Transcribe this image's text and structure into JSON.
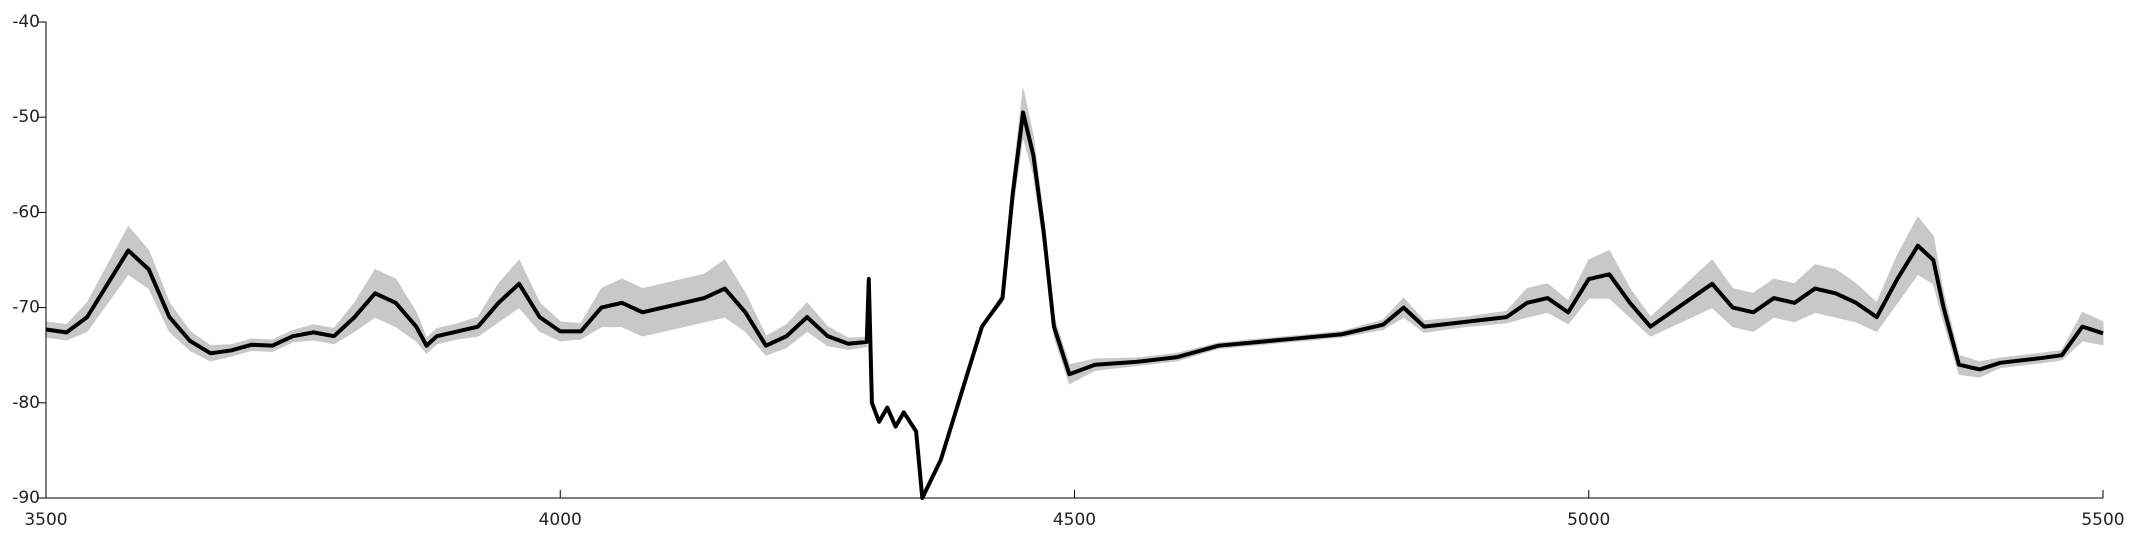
{
  "chart_data": {
    "type": "line",
    "x": [
      3500,
      3520,
      3540,
      3560,
      3580,
      3600,
      3620,
      3640,
      3660,
      3680,
      3700,
      3720,
      3740,
      3760,
      3780,
      3800,
      3820,
      3840,
      3860,
      3870,
      3880,
      3900,
      3920,
      3940,
      3960,
      3980,
      4000,
      4020,
      4040,
      4060,
      4080,
      4100,
      4120,
      4140,
      4160,
      4180,
      4200,
      4220,
      4240,
      4260,
      4280,
      4298,
      4300,
      4303,
      4310,
      4318,
      4326,
      4334,
      4340,
      4346,
      4352,
      4370,
      4390,
      4410,
      4430,
      4440,
      4450,
      4460,
      4470,
      4480,
      4495,
      4520,
      4560,
      4600,
      4640,
      4680,
      4720,
      4760,
      4800,
      4820,
      4840,
      4880,
      4920,
      4940,
      4960,
      4980,
      5000,
      5020,
      5040,
      5060,
      5080,
      5100,
      5120,
      5140,
      5160,
      5180,
      5200,
      5220,
      5240,
      5260,
      5280,
      5300,
      5320,
      5335,
      5345,
      5360,
      5380,
      5400,
      5440,
      5460,
      5480,
      5500
    ],
    "series": [
      {
        "color": "#000000",
        "error_color": "#c8c8c8",
        "values": [
          -72.3,
          -72.6,
          -71,
          -67.5,
          -64,
          -66,
          -71,
          -73.5,
          -74.8,
          -74.5,
          -73.9,
          -74,
          -73,
          -72.6,
          -73,
          -71,
          -68.5,
          -69.5,
          -72,
          -74,
          -73,
          -72.5,
          -72,
          -69.5,
          -67.5,
          -71,
          -72.5,
          -72.5,
          -70,
          -69.5,
          -70.5,
          -70,
          -69.5,
          -69,
          -68,
          -70.5,
          -74,
          -73,
          -71,
          -73,
          -73.8,
          -73.6,
          -67,
          -80,
          -82,
          -80.5,
          -82.5,
          -81,
          -82,
          -83,
          -90,
          -86,
          -79,
          -72,
          -69,
          -58,
          -49.5,
          -54,
          -62,
          -72,
          -77,
          -76,
          -75.7,
          -75.2,
          -74,
          -73.6,
          -73.2,
          -72.8,
          -71.8,
          -70,
          -72,
          -71.5,
          -71,
          -69.5,
          -69,
          -70.5,
          -67,
          -66.5,
          -69.5,
          -72,
          -70.5,
          -69,
          -67.5,
          -70,
          -70.5,
          -69,
          -69.5,
          -68,
          -68.5,
          -69.5,
          -71,
          -67,
          -63.5,
          -65,
          -70,
          -76,
          -76.5,
          -75.8,
          -75.3,
          -75,
          -72,
          -72.7
        ],
        "error": [
          0.8,
          0.8,
          1.5,
          2,
          2.5,
          2,
          1.5,
          1,
          0.8,
          0.6,
          0.6,
          0.6,
          0.6,
          0.8,
          0.8,
          1.5,
          2.5,
          2.5,
          1.5,
          0.8,
          0.8,
          0.8,
          1,
          2,
          2.5,
          1.5,
          1,
          0.8,
          2,
          2.5,
          2.5,
          2.5,
          2.5,
          2.5,
          3,
          2,
          1,
          1.2,
          1.5,
          1,
          0.6,
          0.5,
          0,
          0,
          0,
          0,
          0,
          0,
          0,
          0,
          0,
          0,
          0,
          0,
          0.5,
          1.5,
          2.5,
          2,
          1.5,
          1,
          1,
          0.6,
          0.4,
          0.4,
          0.3,
          0.3,
          0.3,
          0.3,
          0.5,
          1,
          0.6,
          0.5,
          0.6,
          1.5,
          1.5,
          1.2,
          2,
          2.5,
          1.5,
          1,
          1.5,
          2,
          2.5,
          2,
          2,
          2,
          2,
          2.5,
          2.5,
          2,
          1.5,
          2.5,
          3,
          2.5,
          1.5,
          1,
          0.8,
          0.5,
          0.5,
          0.5,
          1.5,
          1.2
        ]
      }
    ],
    "xlim": [
      3500,
      5500
    ],
    "xticks": [
      3500,
      4000,
      4500,
      5000,
      5500
    ],
    "ylim": [
      -90,
      -40
    ],
    "yticks": [
      -90,
      -80,
      -70,
      -60,
      -50,
      -40
    ],
    "grid": false
  }
}
